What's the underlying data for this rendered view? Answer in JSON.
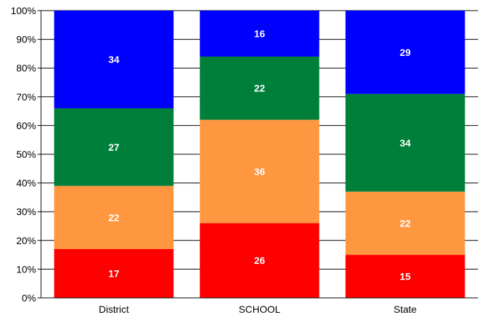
{
  "chart_data": {
    "type": "bar",
    "stacked": true,
    "percent": true,
    "categories": [
      "District",
      "SCHOOL",
      "State"
    ],
    "series": [
      {
        "color": "#ff0000",
        "values": [
          17,
          26,
          15
        ]
      },
      {
        "color": "#ff9640",
        "values": [
          22,
          36,
          22
        ]
      },
      {
        "color": "#007f3a",
        "values": [
          27,
          22,
          34
        ]
      },
      {
        "color": "#0000ff",
        "values": [
          34,
          16,
          29
        ]
      }
    ],
    "ylim": [
      0,
      100
    ],
    "yticks": [
      "0%",
      "10%",
      "20%",
      "30%",
      "40%",
      "50%",
      "60%",
      "70%",
      "80%",
      "90%",
      "100%"
    ],
    "grid": true,
    "legend": "none"
  }
}
